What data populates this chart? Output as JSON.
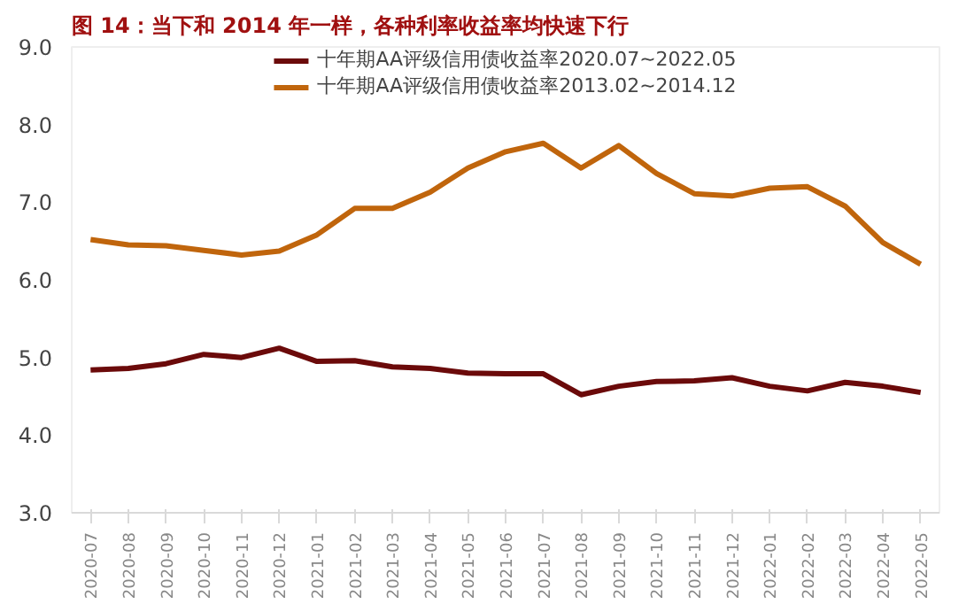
{
  "chart_data": {
    "type": "line",
    "title": "图 14：当下和 2014 年一样，各种利率收益率均快速下行",
    "categories": [
      "2020-07",
      "2020-08",
      "2020-09",
      "2020-10",
      "2020-11",
      "2020-12",
      "2021-01",
      "2021-02",
      "2021-03",
      "2021-04",
      "2021-05",
      "2021-06",
      "2021-07",
      "2021-08",
      "2021-09",
      "2021-10",
      "2021-11",
      "2021-12",
      "2022-01",
      "2022-02",
      "2022-03",
      "2022-04",
      "2022-05"
    ],
    "series": [
      {
        "name": "十年期AA评级信用债收益率2020.07~2022.05",
        "color": "#6b0a0a",
        "values": [
          4.84,
          4.86,
          4.92,
          5.04,
          5.0,
          5.12,
          4.95,
          4.96,
          4.88,
          4.86,
          4.8,
          4.79,
          4.79,
          4.52,
          4.63,
          4.69,
          4.7,
          4.74,
          4.63,
          4.57,
          4.68,
          4.63,
          4.55
        ]
      },
      {
        "name": "十年期AA评级信用债收益率2013.02~2014.12",
        "color": "#c0650c",
        "values": [
          6.52,
          6.45,
          6.44,
          6.38,
          6.32,
          6.37,
          6.58,
          6.92,
          6.92,
          7.13,
          7.44,
          7.65,
          7.76,
          7.44,
          7.73,
          7.37,
          7.11,
          7.08,
          7.18,
          7.2,
          6.95,
          6.48,
          6.2
        ]
      }
    ],
    "ylim": [
      3,
      9
    ],
    "yticks": [
      {
        "value": 3,
        "label": "3.0"
      },
      {
        "value": 4,
        "label": "4.0"
      },
      {
        "value": 5,
        "label": "5.0"
      },
      {
        "value": 6,
        "label": "6.0"
      },
      {
        "value": 7,
        "label": "7.0"
      },
      {
        "value": 8,
        "label": "8.0"
      },
      {
        "value": 9,
        "label": "9.0"
      }
    ],
    "grid": false,
    "legend": "top",
    "marker": "none",
    "line_style": "solid"
  }
}
